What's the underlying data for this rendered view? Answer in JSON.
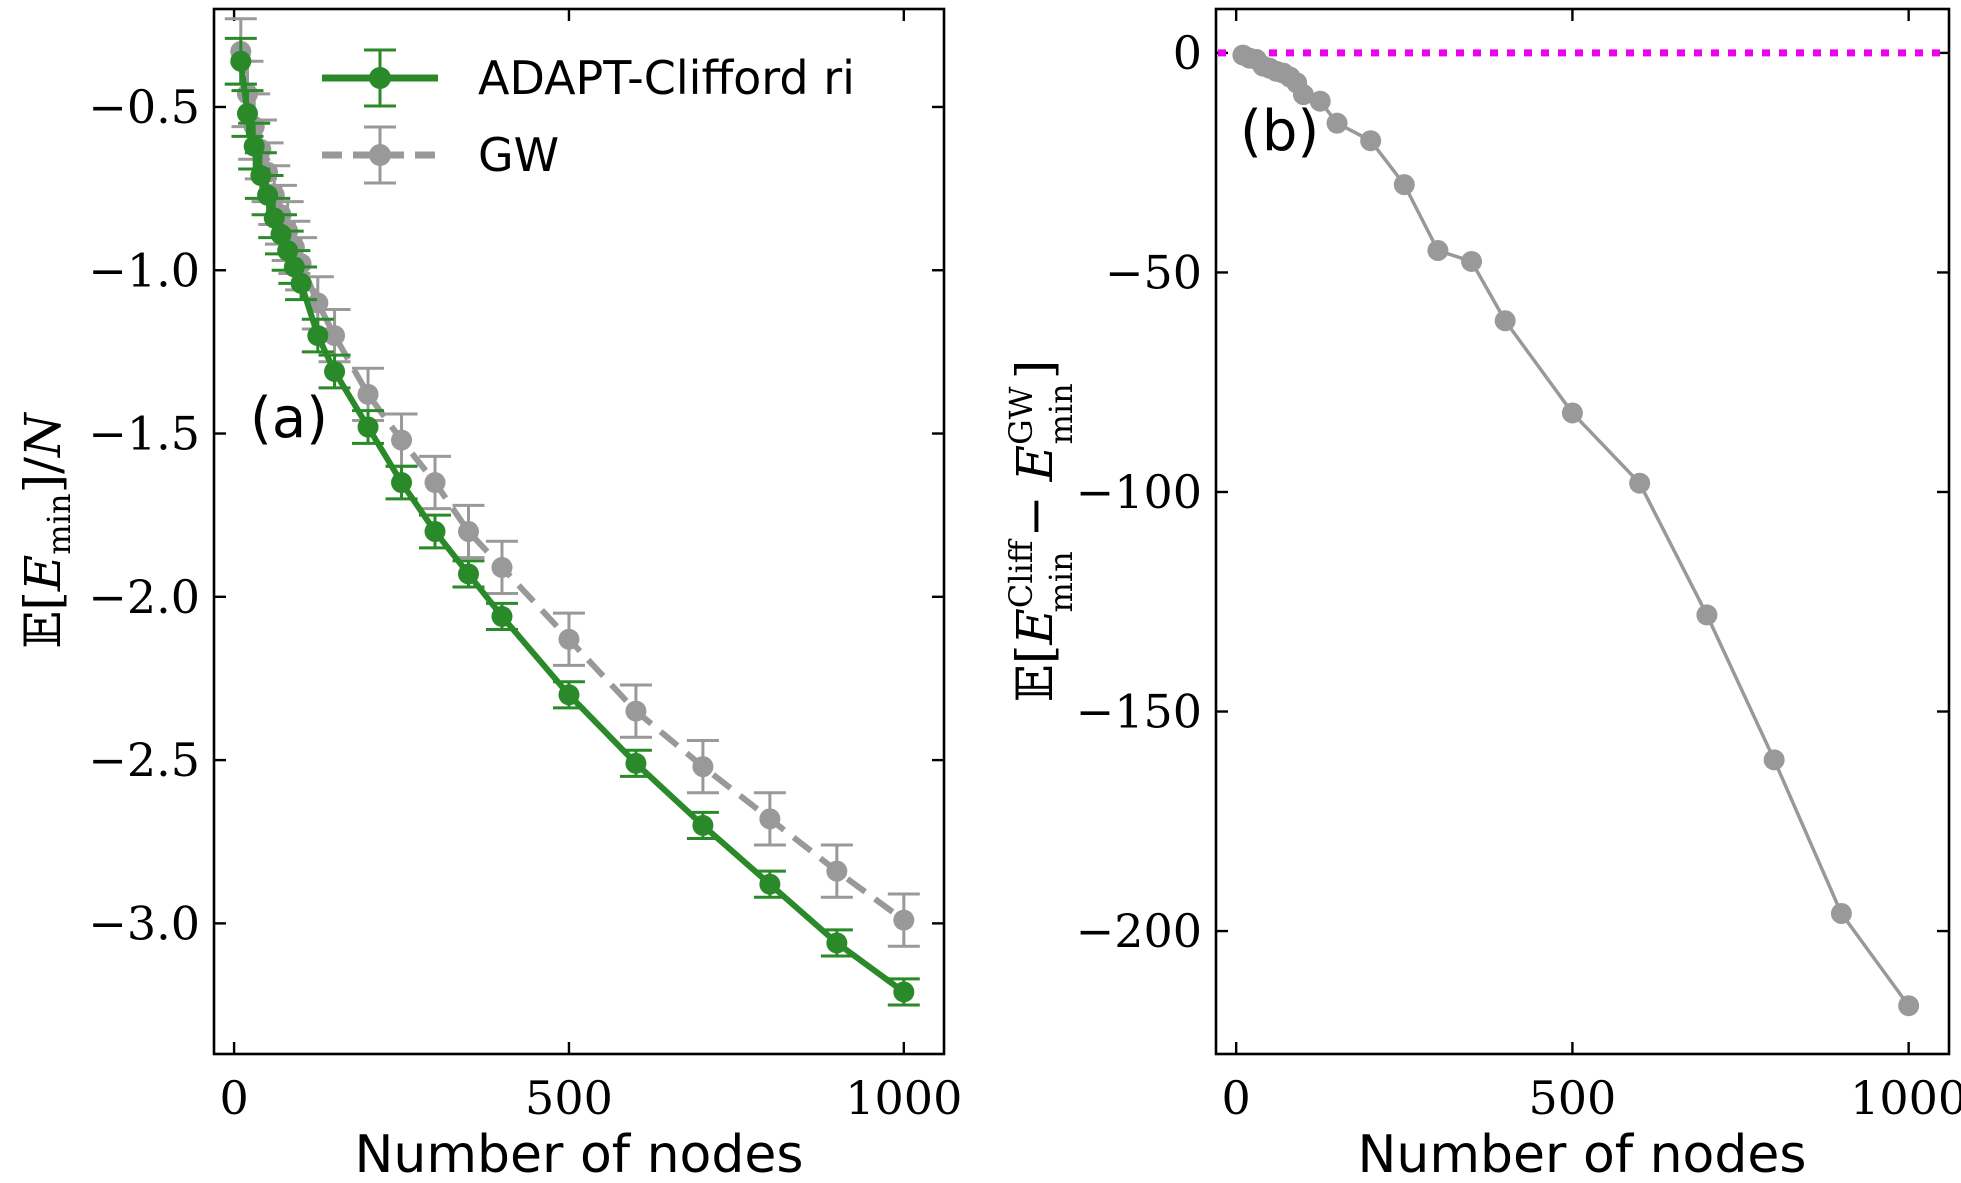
{
  "chart_data": [
    {
      "type": "line",
      "panel_label": "(a)",
      "xlabel": "Number of nodes",
      "ylabel": "𝔼[E_min]/N",
      "xlim": [
        -30,
        1060
      ],
      "ylim": [
        -3.4,
        -0.2
      ],
      "x_ticks": [
        0,
        500,
        1000
      ],
      "x_tick_labels": [
        "0",
        "500",
        "1000"
      ],
      "y_ticks": [
        -0.5,
        -1.0,
        -1.5,
        -2.0,
        -2.5,
        -3.0
      ],
      "y_tick_labels": [
        "−0.5",
        "−1.0",
        "−1.5",
        "−2.0",
        "−2.5",
        "−3.0"
      ],
      "grid": false,
      "legend_position": "top-right",
      "x": [
        10,
        20,
        30,
        40,
        50,
        60,
        70,
        80,
        90,
        100,
        125,
        150,
        200,
        250,
        300,
        350,
        400,
        500,
        600,
        700,
        800,
        900,
        1000
      ],
      "series": [
        {
          "name": "ADAPT-Clifford ri",
          "color": "#2a8a2a",
          "line_style": "solid",
          "values": [
            -0.36,
            -0.52,
            -0.62,
            -0.71,
            -0.77,
            -0.84,
            -0.89,
            -0.94,
            -0.99,
            -1.04,
            -1.2,
            -1.31,
            -1.48,
            -1.65,
            -1.8,
            -1.93,
            -2.06,
            -2.3,
            -2.51,
            -2.7,
            -2.88,
            -3.06,
            -3.21
          ],
          "errors": [
            0.07,
            0.07,
            0.07,
            0.07,
            0.06,
            0.06,
            0.06,
            0.06,
            0.05,
            0.05,
            0.05,
            0.05,
            0.05,
            0.05,
            0.05,
            0.04,
            0.04,
            0.04,
            0.04,
            0.04,
            0.04,
            0.04,
            0.04
          ]
        },
        {
          "name": "GW",
          "color": "#999999",
          "line_style": "dashed",
          "values": [
            -0.33,
            -0.46,
            -0.56,
            -0.63,
            -0.7,
            -0.77,
            -0.83,
            -0.88,
            -0.93,
            -0.98,
            -1.1,
            -1.2,
            -1.38,
            -1.52,
            -1.65,
            -1.8,
            -1.91,
            -2.13,
            -2.35,
            -2.52,
            -2.68,
            -2.84,
            -2.99
          ]
        }
      ],
      "gw_errors": [
        0.1,
        0.1,
        0.1,
        0.09,
        0.09,
        0.09,
        0.09,
        0.09,
        0.08,
        0.08,
        0.08,
        0.08,
        0.08,
        0.08,
        0.08,
        0.08,
        0.08,
        0.08,
        0.08,
        0.08,
        0.08,
        0.08,
        0.08
      ]
    },
    {
      "type": "line",
      "panel_label": "(b)",
      "xlabel": "Number of nodes",
      "ylabel": "𝔼[E_min^Cliff − E_min^GW]",
      "xlim": [
        -30,
        1060
      ],
      "ylim": [
        -228,
        10
      ],
      "x_ticks": [
        0,
        500,
        1000
      ],
      "x_tick_labels": [
        "0",
        "500",
        "1000"
      ],
      "y_ticks": [
        0,
        -50,
        -100,
        -150,
        -200
      ],
      "y_tick_labels": [
        "0",
        "−50",
        "−100",
        "−150",
        "−200"
      ],
      "grid": false,
      "reference_line": {
        "y": 0,
        "color": "#ee00ee",
        "style": "dotted"
      },
      "series": [
        {
          "color": "#999999",
          "line_style": "solid",
          "x": [
            10,
            20,
            30,
            40,
            50,
            60,
            70,
            80,
            90,
            100,
            125,
            150,
            200,
            250,
            300,
            350,
            400,
            500,
            600,
            700,
            800,
            900,
            1000
          ],
          "values": [
            -0.5,
            -1.2,
            -1.5,
            -3,
            -3.5,
            -4.2,
            -4.6,
            -5.5,
            -6.8,
            -9.5,
            -11,
            -16,
            -20,
            -30,
            -45,
            -47.5,
            -61,
            -82,
            -98,
            -128,
            -161,
            -196,
            -217
          ]
        }
      ]
    }
  ],
  "math_text": {
    "ya_E": "𝔼",
    "ya_br1": "[",
    "ya_var": "E",
    "ya_sub": "min",
    "ya_br2": "]/",
    "ya_N": "N",
    "yb_E": "𝔼",
    "yb_br1": "[",
    "yb_var1": "E",
    "yb_sup1": "Cliff",
    "yb_sub1": "min",
    "yb_minus": "−",
    "yb_var2": "E",
    "yb_sup2": "GW",
    "yb_sub2": "min",
    "yb_br2": "]"
  }
}
